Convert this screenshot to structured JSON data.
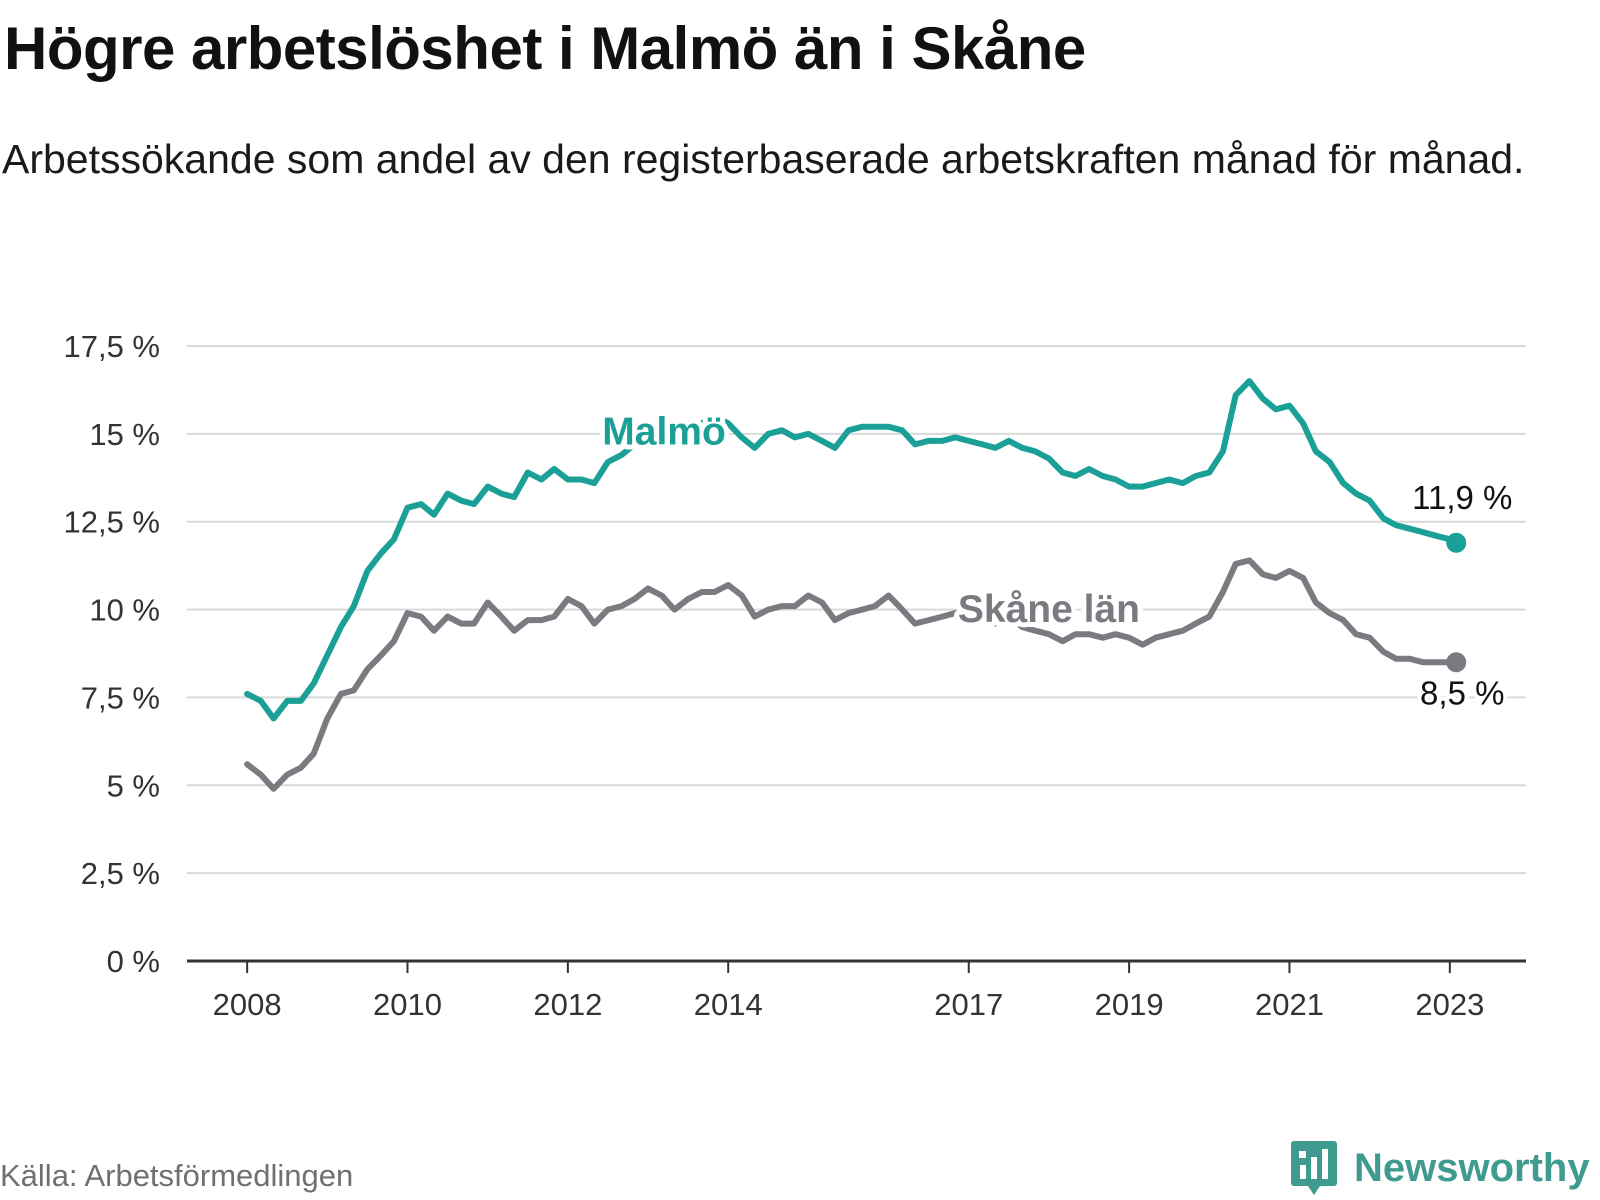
{
  "title": "Högre arbetslöshet i Malmö än i Skåne",
  "subtitle": "Arbetssökande som andel av den registerbaserade arbetskraften månad för månad.",
  "source": "Källa: Arbetsförmedlingen",
  "brand": {
    "name": "Newsworthy",
    "icon": "newsworthy-logo-icon",
    "color": "#3f9a90"
  },
  "chart_data": {
    "type": "line",
    "title": "Högre arbetslöshet i Malmö än i Skåne",
    "xlabel": "",
    "ylabel": "",
    "ylim": [
      0,
      17.5
    ],
    "xlim": [
      2007.25,
      2023.95
    ],
    "grid": true,
    "y_ticks": [
      {
        "value": 0,
        "label": "0 %"
      },
      {
        "value": 2.5,
        "label": "2,5 %"
      },
      {
        "value": 5,
        "label": "5 %"
      },
      {
        "value": 7.5,
        "label": "7,5 %"
      },
      {
        "value": 10,
        "label": "10 %"
      },
      {
        "value": 12.5,
        "label": "12,5 %"
      },
      {
        "value": 15,
        "label": "15 %"
      },
      {
        "value": 17.5,
        "label": "17,5 %"
      }
    ],
    "x_ticks": [
      {
        "value": 2008,
        "label": "2008"
      },
      {
        "value": 2010,
        "label": "2010"
      },
      {
        "value": 2012,
        "label": "2012"
      },
      {
        "value": 2014,
        "label": "2014"
      },
      {
        "value": 2017,
        "label": "2017"
      },
      {
        "value": 2019,
        "label": "2019"
      },
      {
        "value": 2021,
        "label": "2021"
      },
      {
        "value": 2023,
        "label": "2023"
      }
    ],
    "series": [
      {
        "name": "Malmö",
        "color": "#1aa096",
        "end_label": "11,9 %",
        "points": [
          [
            2008.0,
            7.6
          ],
          [
            2008.17,
            7.4
          ],
          [
            2008.33,
            6.9
          ],
          [
            2008.5,
            7.4
          ],
          [
            2008.67,
            7.4
          ],
          [
            2008.83,
            7.9
          ],
          [
            2009.0,
            8.7
          ],
          [
            2009.17,
            9.5
          ],
          [
            2009.33,
            10.1
          ],
          [
            2009.5,
            11.1
          ],
          [
            2009.67,
            11.6
          ],
          [
            2009.83,
            12.0
          ],
          [
            2010.0,
            12.9
          ],
          [
            2010.17,
            13.0
          ],
          [
            2010.33,
            12.7
          ],
          [
            2010.5,
            13.3
          ],
          [
            2010.67,
            13.1
          ],
          [
            2010.83,
            13.0
          ],
          [
            2011.0,
            13.5
          ],
          [
            2011.17,
            13.3
          ],
          [
            2011.33,
            13.2
          ],
          [
            2011.5,
            13.9
          ],
          [
            2011.67,
            13.7
          ],
          [
            2011.83,
            14.0
          ],
          [
            2012.0,
            13.7
          ],
          [
            2012.17,
            13.7
          ],
          [
            2012.33,
            13.6
          ],
          [
            2012.5,
            14.2
          ],
          [
            2012.67,
            14.4
          ],
          [
            2012.83,
            14.7
          ],
          [
            2013.0,
            14.8
          ],
          [
            2013.17,
            14.9
          ],
          [
            2013.33,
            15.0
          ],
          [
            2013.5,
            15.0
          ],
          [
            2013.67,
            15.3
          ],
          [
            2013.83,
            15.5
          ],
          [
            2014.0,
            15.3
          ],
          [
            2014.17,
            14.9
          ],
          [
            2014.33,
            14.6
          ],
          [
            2014.5,
            15.0
          ],
          [
            2014.67,
            15.1
          ],
          [
            2014.83,
            14.9
          ],
          [
            2015.0,
            15.0
          ],
          [
            2015.17,
            14.8
          ],
          [
            2015.33,
            14.6
          ],
          [
            2015.5,
            15.1
          ],
          [
            2015.67,
            15.2
          ],
          [
            2015.83,
            15.2
          ],
          [
            2016.0,
            15.2
          ],
          [
            2016.17,
            15.1
          ],
          [
            2016.33,
            14.7
          ],
          [
            2016.5,
            14.8
          ],
          [
            2016.67,
            14.8
          ],
          [
            2016.83,
            14.9
          ],
          [
            2017.0,
            14.8
          ],
          [
            2017.17,
            14.7
          ],
          [
            2017.33,
            14.6
          ],
          [
            2017.5,
            14.8
          ],
          [
            2017.67,
            14.6
          ],
          [
            2017.83,
            14.5
          ],
          [
            2018.0,
            14.3
          ],
          [
            2018.17,
            13.9
          ],
          [
            2018.33,
            13.8
          ],
          [
            2018.5,
            14.0
          ],
          [
            2018.67,
            13.8
          ],
          [
            2018.83,
            13.7
          ],
          [
            2019.0,
            13.5
          ],
          [
            2019.17,
            13.5
          ],
          [
            2019.33,
            13.6
          ],
          [
            2019.5,
            13.7
          ],
          [
            2019.67,
            13.6
          ],
          [
            2019.83,
            13.8
          ],
          [
            2020.0,
            13.9
          ],
          [
            2020.17,
            14.5
          ],
          [
            2020.33,
            16.1
          ],
          [
            2020.5,
            16.5
          ],
          [
            2020.67,
            16.0
          ],
          [
            2020.83,
            15.7
          ],
          [
            2021.0,
            15.8
          ],
          [
            2021.17,
            15.3
          ],
          [
            2021.33,
            14.5
          ],
          [
            2021.5,
            14.2
          ],
          [
            2021.67,
            13.6
          ],
          [
            2021.83,
            13.3
          ],
          [
            2022.0,
            13.1
          ],
          [
            2022.17,
            12.6
          ],
          [
            2022.33,
            12.4
          ],
          [
            2022.5,
            12.3
          ],
          [
            2022.67,
            12.2
          ],
          [
            2022.83,
            12.1
          ],
          [
            2023.0,
            12.0
          ],
          [
            2023.08,
            11.9
          ]
        ]
      },
      {
        "name": "Skåne län",
        "color": "#7a7a80",
        "end_label": "8,5 %",
        "points": [
          [
            2008.0,
            5.6
          ],
          [
            2008.17,
            5.3
          ],
          [
            2008.33,
            4.9
          ],
          [
            2008.5,
            5.3
          ],
          [
            2008.67,
            5.5
          ],
          [
            2008.83,
            5.9
          ],
          [
            2009.0,
            6.9
          ],
          [
            2009.17,
            7.6
          ],
          [
            2009.33,
            7.7
          ],
          [
            2009.5,
            8.3
          ],
          [
            2009.67,
            8.7
          ],
          [
            2009.83,
            9.1
          ],
          [
            2010.0,
            9.9
          ],
          [
            2010.17,
            9.8
          ],
          [
            2010.33,
            9.4
          ],
          [
            2010.5,
            9.8
          ],
          [
            2010.67,
            9.6
          ],
          [
            2010.83,
            9.6
          ],
          [
            2011.0,
            10.2
          ],
          [
            2011.17,
            9.8
          ],
          [
            2011.33,
            9.4
          ],
          [
            2011.5,
            9.7
          ],
          [
            2011.67,
            9.7
          ],
          [
            2011.83,
            9.8
          ],
          [
            2012.0,
            10.3
          ],
          [
            2012.17,
            10.1
          ],
          [
            2012.33,
            9.6
          ],
          [
            2012.5,
            10.0
          ],
          [
            2012.67,
            10.1
          ],
          [
            2012.83,
            10.3
          ],
          [
            2013.0,
            10.6
          ],
          [
            2013.17,
            10.4
          ],
          [
            2013.33,
            10.0
          ],
          [
            2013.5,
            10.3
          ],
          [
            2013.67,
            10.5
          ],
          [
            2013.83,
            10.5
          ],
          [
            2014.0,
            10.7
          ],
          [
            2014.17,
            10.4
          ],
          [
            2014.33,
            9.8
          ],
          [
            2014.5,
            10.0
          ],
          [
            2014.67,
            10.1
          ],
          [
            2014.83,
            10.1
          ],
          [
            2015.0,
            10.4
          ],
          [
            2015.17,
            10.2
          ],
          [
            2015.33,
            9.7
          ],
          [
            2015.5,
            9.9
          ],
          [
            2015.67,
            10.0
          ],
          [
            2015.83,
            10.1
          ],
          [
            2016.0,
            10.4
          ],
          [
            2016.17,
            10.0
          ],
          [
            2016.33,
            9.6
          ],
          [
            2016.5,
            9.7
          ],
          [
            2016.67,
            9.8
          ],
          [
            2016.83,
            9.9
          ],
          [
            2017.0,
            9.8
          ],
          [
            2017.17,
            9.7
          ],
          [
            2017.33,
            9.6
          ],
          [
            2017.5,
            9.8
          ],
          [
            2017.67,
            9.5
          ],
          [
            2017.83,
            9.4
          ],
          [
            2018.0,
            9.3
          ],
          [
            2018.17,
            9.1
          ],
          [
            2018.33,
            9.3
          ],
          [
            2018.5,
            9.3
          ],
          [
            2018.67,
            9.2
          ],
          [
            2018.83,
            9.3
          ],
          [
            2019.0,
            9.2
          ],
          [
            2019.17,
            9.0
          ],
          [
            2019.33,
            9.2
          ],
          [
            2019.5,
            9.3
          ],
          [
            2019.67,
            9.4
          ],
          [
            2019.83,
            9.6
          ],
          [
            2020.0,
            9.8
          ],
          [
            2020.17,
            10.5
          ],
          [
            2020.33,
            11.3
          ],
          [
            2020.5,
            11.4
          ],
          [
            2020.67,
            11.0
          ],
          [
            2020.83,
            10.9
          ],
          [
            2021.0,
            11.1
          ],
          [
            2021.17,
            10.9
          ],
          [
            2021.33,
            10.2
          ],
          [
            2021.5,
            9.9
          ],
          [
            2021.67,
            9.7
          ],
          [
            2021.83,
            9.3
          ],
          [
            2022.0,
            9.2
          ],
          [
            2022.17,
            8.8
          ],
          [
            2022.33,
            8.6
          ],
          [
            2022.5,
            8.6
          ],
          [
            2022.67,
            8.5
          ],
          [
            2022.83,
            8.5
          ],
          [
            2023.0,
            8.5
          ],
          [
            2023.08,
            8.5
          ]
        ]
      }
    ]
  }
}
